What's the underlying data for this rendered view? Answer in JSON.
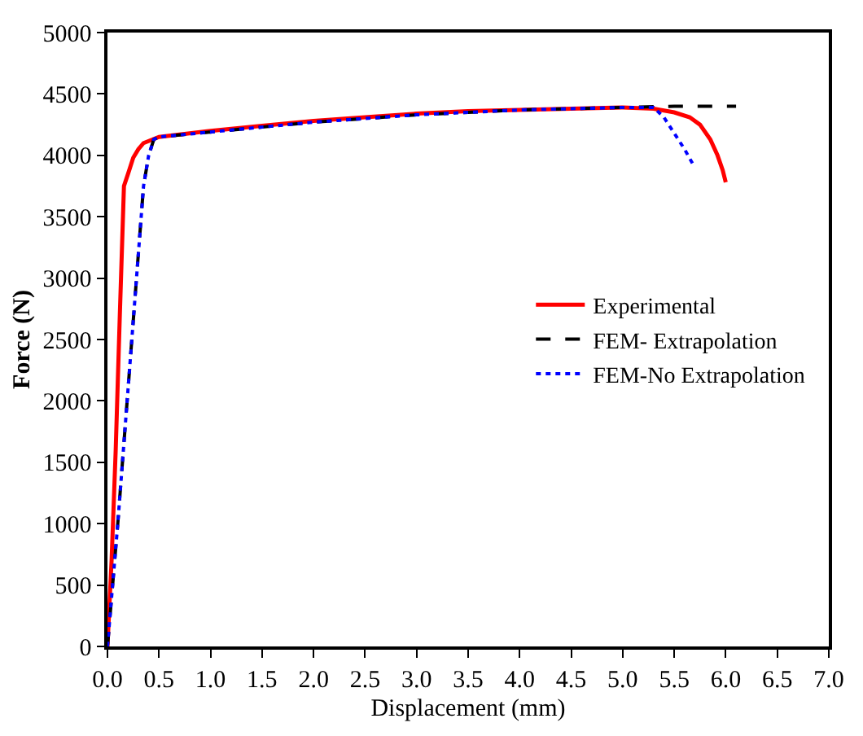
{
  "chart_data": {
    "type": "line",
    "xlabel": "Displacement (mm)",
    "ylabel": "Force (N)",
    "xlim": [
      0,
      7
    ],
    "xticks": [
      {
        "value": 0,
        "label": "0.0"
      },
      {
        "value": 0.5,
        "label": "0.5"
      },
      {
        "value": 1,
        "label": "1.0"
      },
      {
        "value": 1.5,
        "label": "1.5"
      },
      {
        "value": 2,
        "label": "2.0"
      },
      {
        "value": 2.5,
        "label": "2.5"
      },
      {
        "value": 3,
        "label": "3.0"
      },
      {
        "value": 3.5,
        "label": "3.5"
      },
      {
        "value": 4,
        "label": "4.0"
      },
      {
        "value": 4.5,
        "label": "4.5"
      },
      {
        "value": 5,
        "label": "5.0"
      },
      {
        "value": 5.5,
        "label": "5.5"
      },
      {
        "value": 6,
        "label": "6.0"
      },
      {
        "value": 6.5,
        "label": "6.5"
      },
      {
        "value": 7,
        "label": "7.0"
      }
    ],
    "ylim": [
      0,
      5000
    ],
    "yticks": [
      0,
      500,
      1000,
      1500,
      2000,
      2500,
      3000,
      3500,
      4000,
      4500,
      5000
    ],
    "legend": "right",
    "marker": "none",
    "series": [
      {
        "name": "Experimental",
        "color": "#ff0000",
        "line_style": "solid",
        "x": [
          0,
          0.04,
          0.08,
          0.12,
          0.16,
          0.2,
          0.25,
          0.3,
          0.35,
          0.5,
          1,
          1.5,
          2,
          2.5,
          3,
          3.5,
          4,
          4.5,
          5,
          5.3,
          5.5,
          5.65,
          5.75,
          5.85,
          5.92,
          5.97,
          6.0
        ],
        "values": [
          0,
          700,
          1600,
          2700,
          3750,
          3850,
          3980,
          4050,
          4100,
          4150,
          4200,
          4240,
          4280,
          4310,
          4340,
          4360,
          4370,
          4380,
          4390,
          4380,
          4350,
          4310,
          4250,
          4130,
          4000,
          3880,
          3780
        ]
      },
      {
        "name": "FEM- Extrapolation",
        "color": "#000000",
        "line_style": "dashed",
        "x": [
          0,
          0.1,
          0.2,
          0.3,
          0.35,
          0.4,
          0.45,
          0.5,
          1,
          1.5,
          2,
          2.5,
          3,
          3.5,
          4,
          4.5,
          5,
          5.5,
          6.1
        ],
        "values": [
          0,
          1000,
          2100,
          3200,
          3750,
          4000,
          4130,
          4150,
          4190,
          4230,
          4270,
          4300,
          4330,
          4350,
          4370,
          4380,
          4390,
          4400,
          4400
        ]
      },
      {
        "name": "FEM-No Extrapolation",
        "color": "#0000ff",
        "line_style": "dotted",
        "x": [
          0,
          0.1,
          0.2,
          0.3,
          0.35,
          0.4,
          0.45,
          0.5,
          1,
          1.5,
          2,
          2.5,
          3,
          3.5,
          4,
          4.5,
          5,
          5.3,
          5.4,
          5.5,
          5.6,
          5.68
        ],
        "values": [
          0,
          1000,
          2100,
          3200,
          3750,
          4000,
          4130,
          4150,
          4190,
          4230,
          4270,
          4300,
          4330,
          4350,
          4370,
          4380,
          4390,
          4390,
          4310,
          4180,
          4050,
          3930
        ]
      }
    ]
  }
}
